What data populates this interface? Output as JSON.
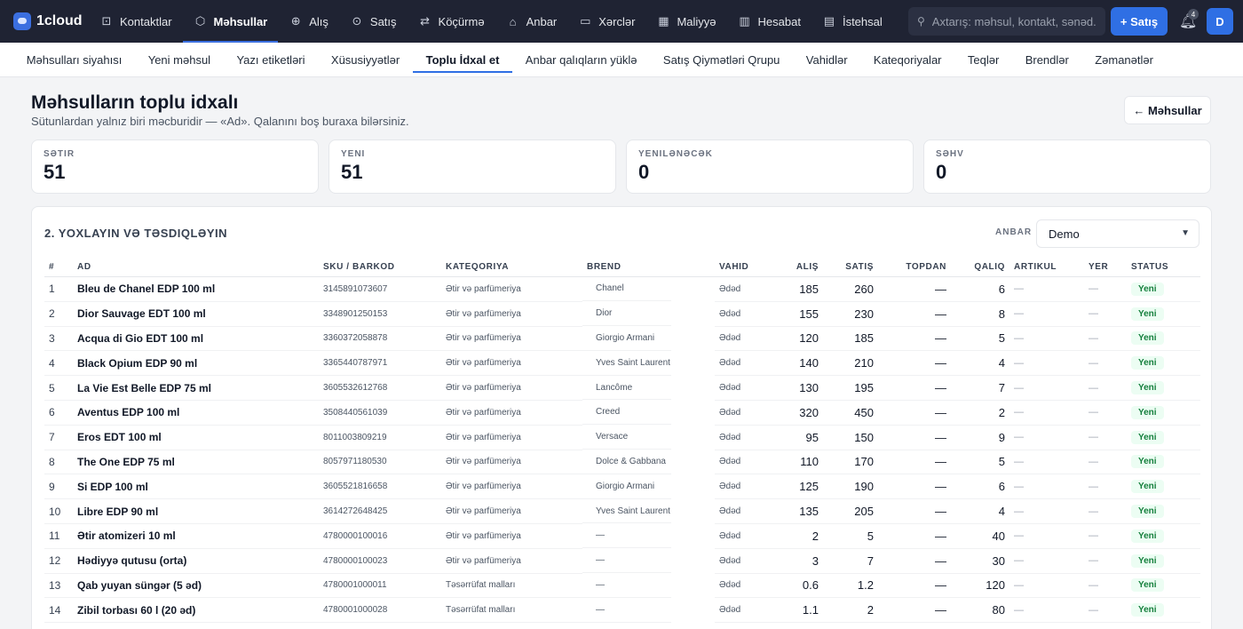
{
  "brand": {
    "name": "1cloud"
  },
  "nav": [
    {
      "label": "Kontaktlar",
      "icon": "contacts-icon",
      "glyph": "⊡"
    },
    {
      "label": "Məhsullar",
      "icon": "box-icon",
      "glyph": "⬡",
      "active": true
    },
    {
      "label": "Alış",
      "icon": "plus-circle-icon",
      "glyph": "⊕"
    },
    {
      "label": "Satış",
      "icon": "arrow-circle-icon",
      "glyph": "⊙"
    },
    {
      "label": "Köçürmə",
      "icon": "transfer-icon",
      "glyph": "⇄"
    },
    {
      "label": "Anbar",
      "icon": "warehouse-icon",
      "glyph": "⌂"
    },
    {
      "label": "Xərclər",
      "icon": "wallet-icon",
      "glyph": "▭"
    },
    {
      "label": "Maliyyə",
      "icon": "grid-icon",
      "glyph": "▦"
    },
    {
      "label": "Hesabat",
      "icon": "bar-chart-icon",
      "glyph": "▥"
    },
    {
      "label": "İstehsal",
      "icon": "factory-icon",
      "glyph": "▤"
    }
  ],
  "search": {
    "placeholder": "Axtarış: məhsul, kontakt, sənəd..."
  },
  "sale_button": "+ Satış",
  "notifications": {
    "count": "4"
  },
  "user": {
    "initial": "D"
  },
  "subnav": [
    {
      "label": "Məhsulları siyahısı"
    },
    {
      "label": "Yeni məhsul"
    },
    {
      "label": "Yazı etiketləri"
    },
    {
      "label": "Xüsusiyyətlər"
    },
    {
      "label": "Toplu İdxal et",
      "active": true
    },
    {
      "label": "Anbar qalıqların yüklə"
    },
    {
      "label": "Satış Qiymətləri Qrupu"
    },
    {
      "label": "Vahidlər"
    },
    {
      "label": "Kateqoriyalar"
    },
    {
      "label": "Teqlər"
    },
    {
      "label": "Brendlər"
    },
    {
      "label": "Zəmanətlər"
    }
  ],
  "page": {
    "title": "Məhsulların toplu idxalı",
    "subtitle": "Sütunlardan yalnız biri məcburidir — «Ad». Qalanını boş buraxa bilərsiniz.",
    "back_button": "← Məhsullar"
  },
  "stats": [
    {
      "label": "Sətir",
      "value": "51"
    },
    {
      "label": "Yeni",
      "value": "51"
    },
    {
      "label": "Yenilənəcək",
      "value": "0"
    },
    {
      "label": "Səhv",
      "value": "0"
    }
  ],
  "review": {
    "title": "2. Yoxlayın və təsdiqləyin",
    "warehouse_label": "Anbar",
    "warehouse_value": "Demo"
  },
  "columns": [
    "#",
    "Ad",
    "SKU / Barkod",
    "Kateqoriya",
    "Brend",
    "Vahid",
    "Alış",
    "Satış",
    "Topdan",
    "Qalıq",
    "Artikul",
    "Yer",
    "Status"
  ],
  "rows": [
    [
      "1",
      "Bleu de Chanel EDP 100 ml",
      "3145891073607",
      "Ətir və parfümeriya",
      "Chanel",
      "Ədəd",
      "185",
      "260",
      "—",
      "6",
      "—",
      "—",
      "Yeni"
    ],
    [
      "2",
      "Dior Sauvage EDT 100 ml",
      "3348901250153",
      "Ətir və parfümeriya",
      "Dior",
      "Ədəd",
      "155",
      "230",
      "—",
      "8",
      "—",
      "—",
      "Yeni"
    ],
    [
      "3",
      "Acqua di Gio EDT 100 ml",
      "3360372058878",
      "Ətir və parfümeriya",
      "Giorgio Armani",
      "Ədəd",
      "120",
      "185",
      "—",
      "5",
      "—",
      "—",
      "Yeni"
    ],
    [
      "4",
      "Black Opium EDP 90 ml",
      "3365440787971",
      "Ətir və parfümeriya",
      "Yves Saint Laurent",
      "Ədəd",
      "140",
      "210",
      "—",
      "4",
      "—",
      "—",
      "Yeni"
    ],
    [
      "5",
      "La Vie Est Belle EDP 75 ml",
      "3605532612768",
      "Ətir və parfümeriya",
      "Lancôme",
      "Ədəd",
      "130",
      "195",
      "—",
      "7",
      "—",
      "—",
      "Yeni"
    ],
    [
      "6",
      "Aventus EDP 100 ml",
      "3508440561039",
      "Ətir və parfümeriya",
      "Creed",
      "Ədəd",
      "320",
      "450",
      "—",
      "2",
      "—",
      "—",
      "Yeni"
    ],
    [
      "7",
      "Eros EDT 100 ml",
      "8011003809219",
      "Ətir və parfümeriya",
      "Versace",
      "Ədəd",
      "95",
      "150",
      "—",
      "9",
      "—",
      "—",
      "Yeni"
    ],
    [
      "8",
      "The One EDP 75 ml",
      "8057971180530",
      "Ətir və parfümeriya",
      "Dolce & Gabbana",
      "Ədəd",
      "110",
      "170",
      "—",
      "5",
      "—",
      "—",
      "Yeni"
    ],
    [
      "9",
      "Si EDP 100 ml",
      "3605521816658",
      "Ətir və parfümeriya",
      "Giorgio Armani",
      "Ədəd",
      "125",
      "190",
      "—",
      "6",
      "—",
      "—",
      "Yeni"
    ],
    [
      "10",
      "Libre EDP 90 ml",
      "3614272648425",
      "Ətir və parfümeriya",
      "Yves Saint Laurent",
      "Ədəd",
      "135",
      "205",
      "—",
      "4",
      "—",
      "—",
      "Yeni"
    ],
    [
      "11",
      "Ətir atomizeri 10 ml",
      "4780000100016",
      "Ətir və parfümeriya",
      "—",
      "Ədəd",
      "2",
      "5",
      "—",
      "40",
      "—",
      "—",
      "Yeni"
    ],
    [
      "12",
      "Hədiyyə qutusu (orta)",
      "4780000100023",
      "Ətir və parfümeriya",
      "—",
      "Ədəd",
      "3",
      "7",
      "—",
      "30",
      "—",
      "—",
      "Yeni"
    ],
    [
      "13",
      "Qab yuyan süngər (5 əd)",
      "4780001000011",
      "Təsərrüfat malları",
      "—",
      "Ədəd",
      "0.6",
      "1.2",
      "—",
      "120",
      "—",
      "—",
      "Yeni"
    ],
    [
      "14",
      "Zibil torbası 60 l (20 əd)",
      "4780001000028",
      "Təsərrüfat malları",
      "—",
      "Ədəd",
      "1.1",
      "2",
      "—",
      "80",
      "—",
      "—",
      "Yeni"
    ]
  ]
}
